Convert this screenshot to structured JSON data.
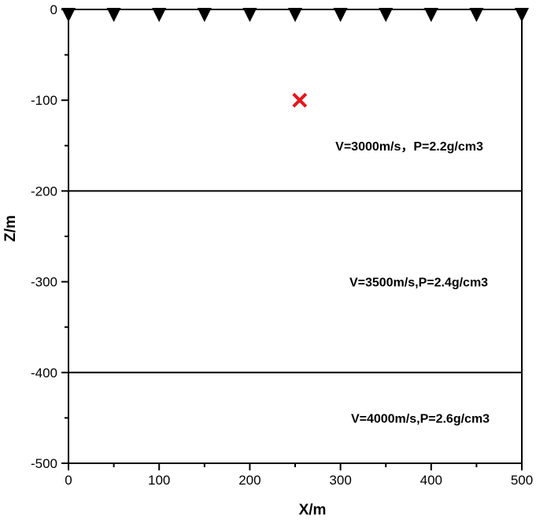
{
  "axes": {
    "xlabel": "X/m",
    "ylabel": "Z/m",
    "x_range": [
      0,
      500
    ],
    "z_range": [
      -500,
      0
    ],
    "x_ticks": [
      "0",
      "100",
      "200",
      "300",
      "400",
      "500"
    ],
    "z_ticks": [
      "0",
      "-100",
      "-200",
      "-300",
      "-400",
      "-500"
    ]
  },
  "receivers": {
    "marker": "inverted-triangle-icon",
    "color": "#000000",
    "x": [
      0,
      50,
      100,
      150,
      200,
      250,
      300,
      350,
      400,
      450,
      500
    ],
    "z": 0
  },
  "source": {
    "marker": "x-cross-icon",
    "color": "#e8141b",
    "x": 255,
    "z": -100
  },
  "interfaces": [
    {
      "z": -200
    },
    {
      "z": -400
    }
  ],
  "layers": [
    {
      "label": "V=3000m/s，P=2.2g/cm3",
      "z_top": 0,
      "z_bottom": -200
    },
    {
      "label": "V=3500m/s,P=2.4g/cm3",
      "z_top": -200,
      "z_bottom": -400
    },
    {
      "label": "V=4000m/s,P=2.6g/cm3",
      "z_top": -400,
      "z_bottom": -500
    }
  ]
}
